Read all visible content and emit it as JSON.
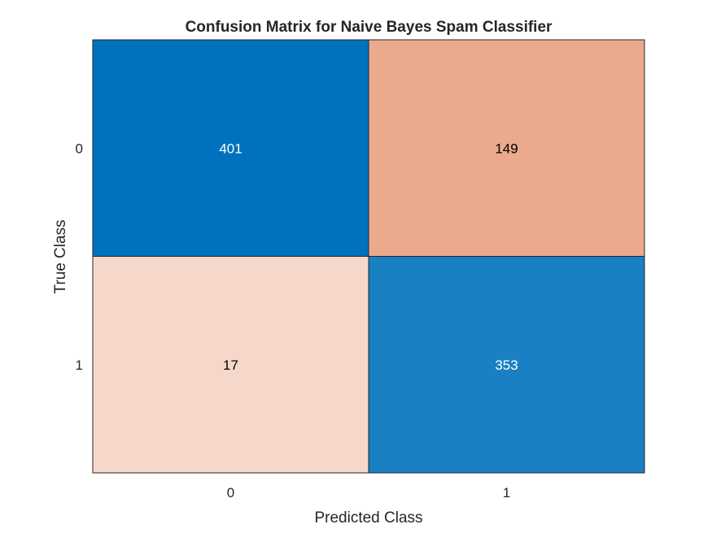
{
  "chart_data": {
    "type": "heatmap",
    "title": "Confusion Matrix for Naive Bayes Spam Classifier",
    "xlabel": "Predicted Class",
    "ylabel": "True Class",
    "x_categories": [
      "0",
      "1"
    ],
    "y_categories": [
      "0",
      "1"
    ],
    "values": [
      [
        401,
        149
      ],
      [
        17,
        353
      ]
    ],
    "cell_colors": [
      [
        "#0072BD",
        "#EBA98E"
      ],
      [
        "#F6D8CB",
        "#1A80C4"
      ]
    ],
    "text_colors": [
      [
        "#ffffff",
        "#000000"
      ],
      [
        "#000000",
        "#ffffff"
      ]
    ],
    "grid": true,
    "legend": "none"
  }
}
